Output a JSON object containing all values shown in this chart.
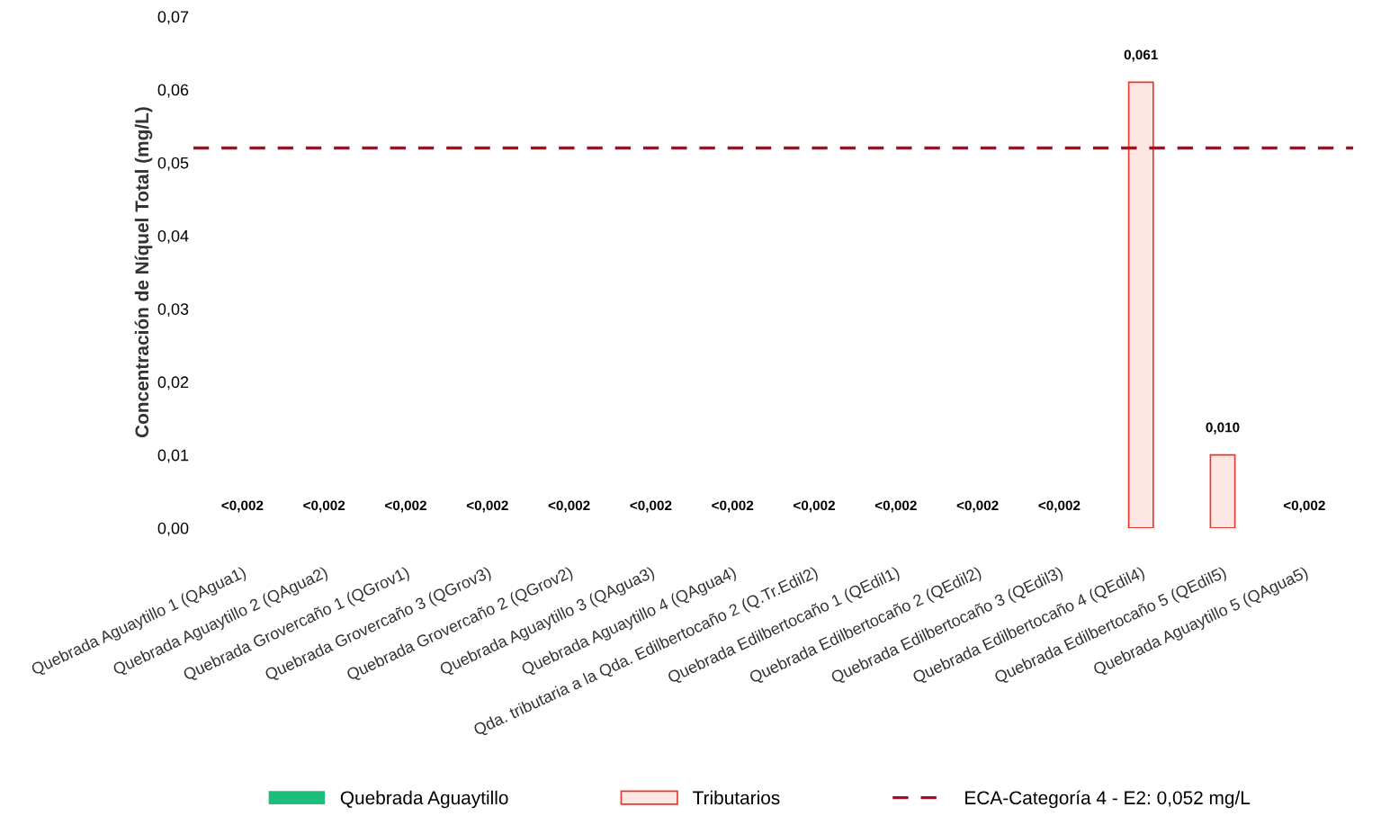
{
  "chart_data": {
    "type": "bar",
    "ylabel": "Concentración de Níquel Total (mg/L)",
    "categories": [
      "Quebrada Aguaytillo 1 (QAgua1)",
      "Quebrada Aguaytillo 2 (QAgua2)",
      "Quebrada Grovercaño 1 (QGrov1)",
      "Quebrada Grovercaño 3 (QGrov3)",
      "Quebrada Grovercaño 2 (QGrov2)",
      "Quebrada Aguaytillo 3 (QAgua3)",
      "Quebrada Aguaytillo 4 (QAgua4)",
      "Qda. tributaria a la Qda. Edilbertocaño 2 (Q.Tr.Edil2)",
      "Quebrada Edilbertocaño 1 (QEdil1)",
      "Quebrada Edilbertocaño 2 (QEdil2)",
      "Quebrada Edilbertocaño 3 (QEdil3)",
      "Quebrada Edilbertocaño 4 (QEdil4)",
      "Quebrada Edilbertocaño 5 (QEdil5)",
      "Quebrada Aguaytillo 5 (QAgua5)"
    ],
    "series": [
      {
        "name": "Quebrada Aguaytillo",
        "color": "#1cbf7a",
        "values": [
          null,
          null,
          null,
          null,
          null,
          null,
          null,
          null,
          null,
          null,
          null,
          null,
          null,
          null
        ],
        "value_labels": [
          "<0,002",
          "<0,002",
          null,
          null,
          null,
          "<0,002",
          "<0,002",
          null,
          null,
          null,
          null,
          null,
          null,
          "<0,002"
        ]
      },
      {
        "name": "Tributarios",
        "color": "#e8382b",
        "values": [
          null,
          null,
          null,
          null,
          null,
          null,
          null,
          null,
          null,
          null,
          null,
          0.061,
          0.01,
          null
        ],
        "value_labels": [
          null,
          null,
          "<0,002",
          "<0,002",
          "<0,002",
          null,
          null,
          "<0,002",
          "<0,002",
          "<0,002",
          "<0,002",
          "0,061",
          "0,010",
          null
        ]
      }
    ],
    "ylim": [
      0,
      0.07
    ],
    "yticks": [
      {
        "value": 0,
        "label": "0,00"
      },
      {
        "value": 0.01,
        "label": "0,01"
      },
      {
        "value": 0.02,
        "label": "0,02"
      },
      {
        "value": 0.03,
        "label": "0,03"
      },
      {
        "value": 0.04,
        "label": "0,04"
      },
      {
        "value": 0.05,
        "label": "0,05"
      },
      {
        "value": 0.06,
        "label": "0,06"
      },
      {
        "value": 0.07,
        "label": "0,07"
      }
    ],
    "ref_lines": [
      {
        "axis": "y",
        "value": 0.052,
        "label": "ECA-Categoría 4 - E2: 0,052 mg/L",
        "color": "#a50f23",
        "line_style": "dashed"
      }
    ],
    "grid": false,
    "legend": "bottom"
  }
}
